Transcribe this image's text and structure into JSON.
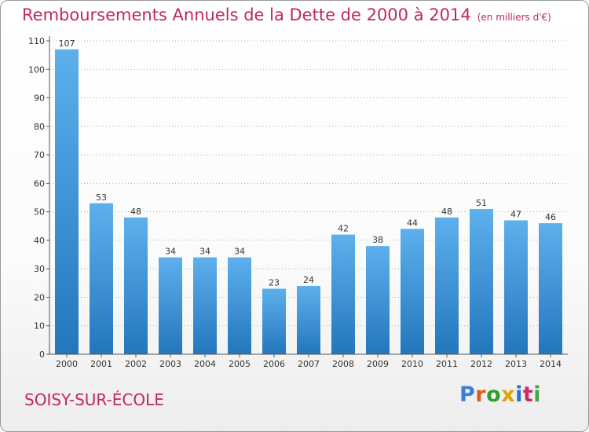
{
  "title": "Remboursements Annuels de la Dette de 2000 à 2014",
  "unit_note": "(en milliers d'€)",
  "city": "SOISY-SUR-ÉCOLE",
  "logo": {
    "letters": [
      "P",
      "r",
      "o",
      "x",
      "i",
      "t",
      "i"
    ],
    "colors": [
      "#3b7fd4",
      "#e05a1c",
      "#2f9e2f",
      "#e0a400",
      "#2a6fd0",
      "#cc2a6a",
      "#3fa83f"
    ]
  },
  "colors": {
    "accent": "#c0285a",
    "bar_top": "#5db0ec",
    "bar_bottom": "#2476bd",
    "axis": "#555555",
    "grid": "#aaaaaa"
  },
  "chart_data": {
    "type": "bar",
    "categories": [
      "2000",
      "2001",
      "2002",
      "2003",
      "2004",
      "2005",
      "2006",
      "2007",
      "2008",
      "2009",
      "2010",
      "2011",
      "2012",
      "2013",
      "2014"
    ],
    "values": [
      107,
      53,
      48,
      34,
      34,
      34,
      23,
      24,
      42,
      38,
      44,
      48,
      51,
      47,
      46
    ],
    "data_labels": [
      "107",
      "53",
      "48",
      "34",
      "34",
      "34",
      "23",
      "24",
      "42",
      "38",
      "44",
      "48",
      "51",
      "47",
      "46"
    ],
    "ylim": [
      0,
      110
    ],
    "yticks": [
      0,
      10,
      20,
      30,
      40,
      50,
      60,
      70,
      80,
      90,
      100,
      110
    ],
    "grid": true,
    "legend": "none"
  }
}
